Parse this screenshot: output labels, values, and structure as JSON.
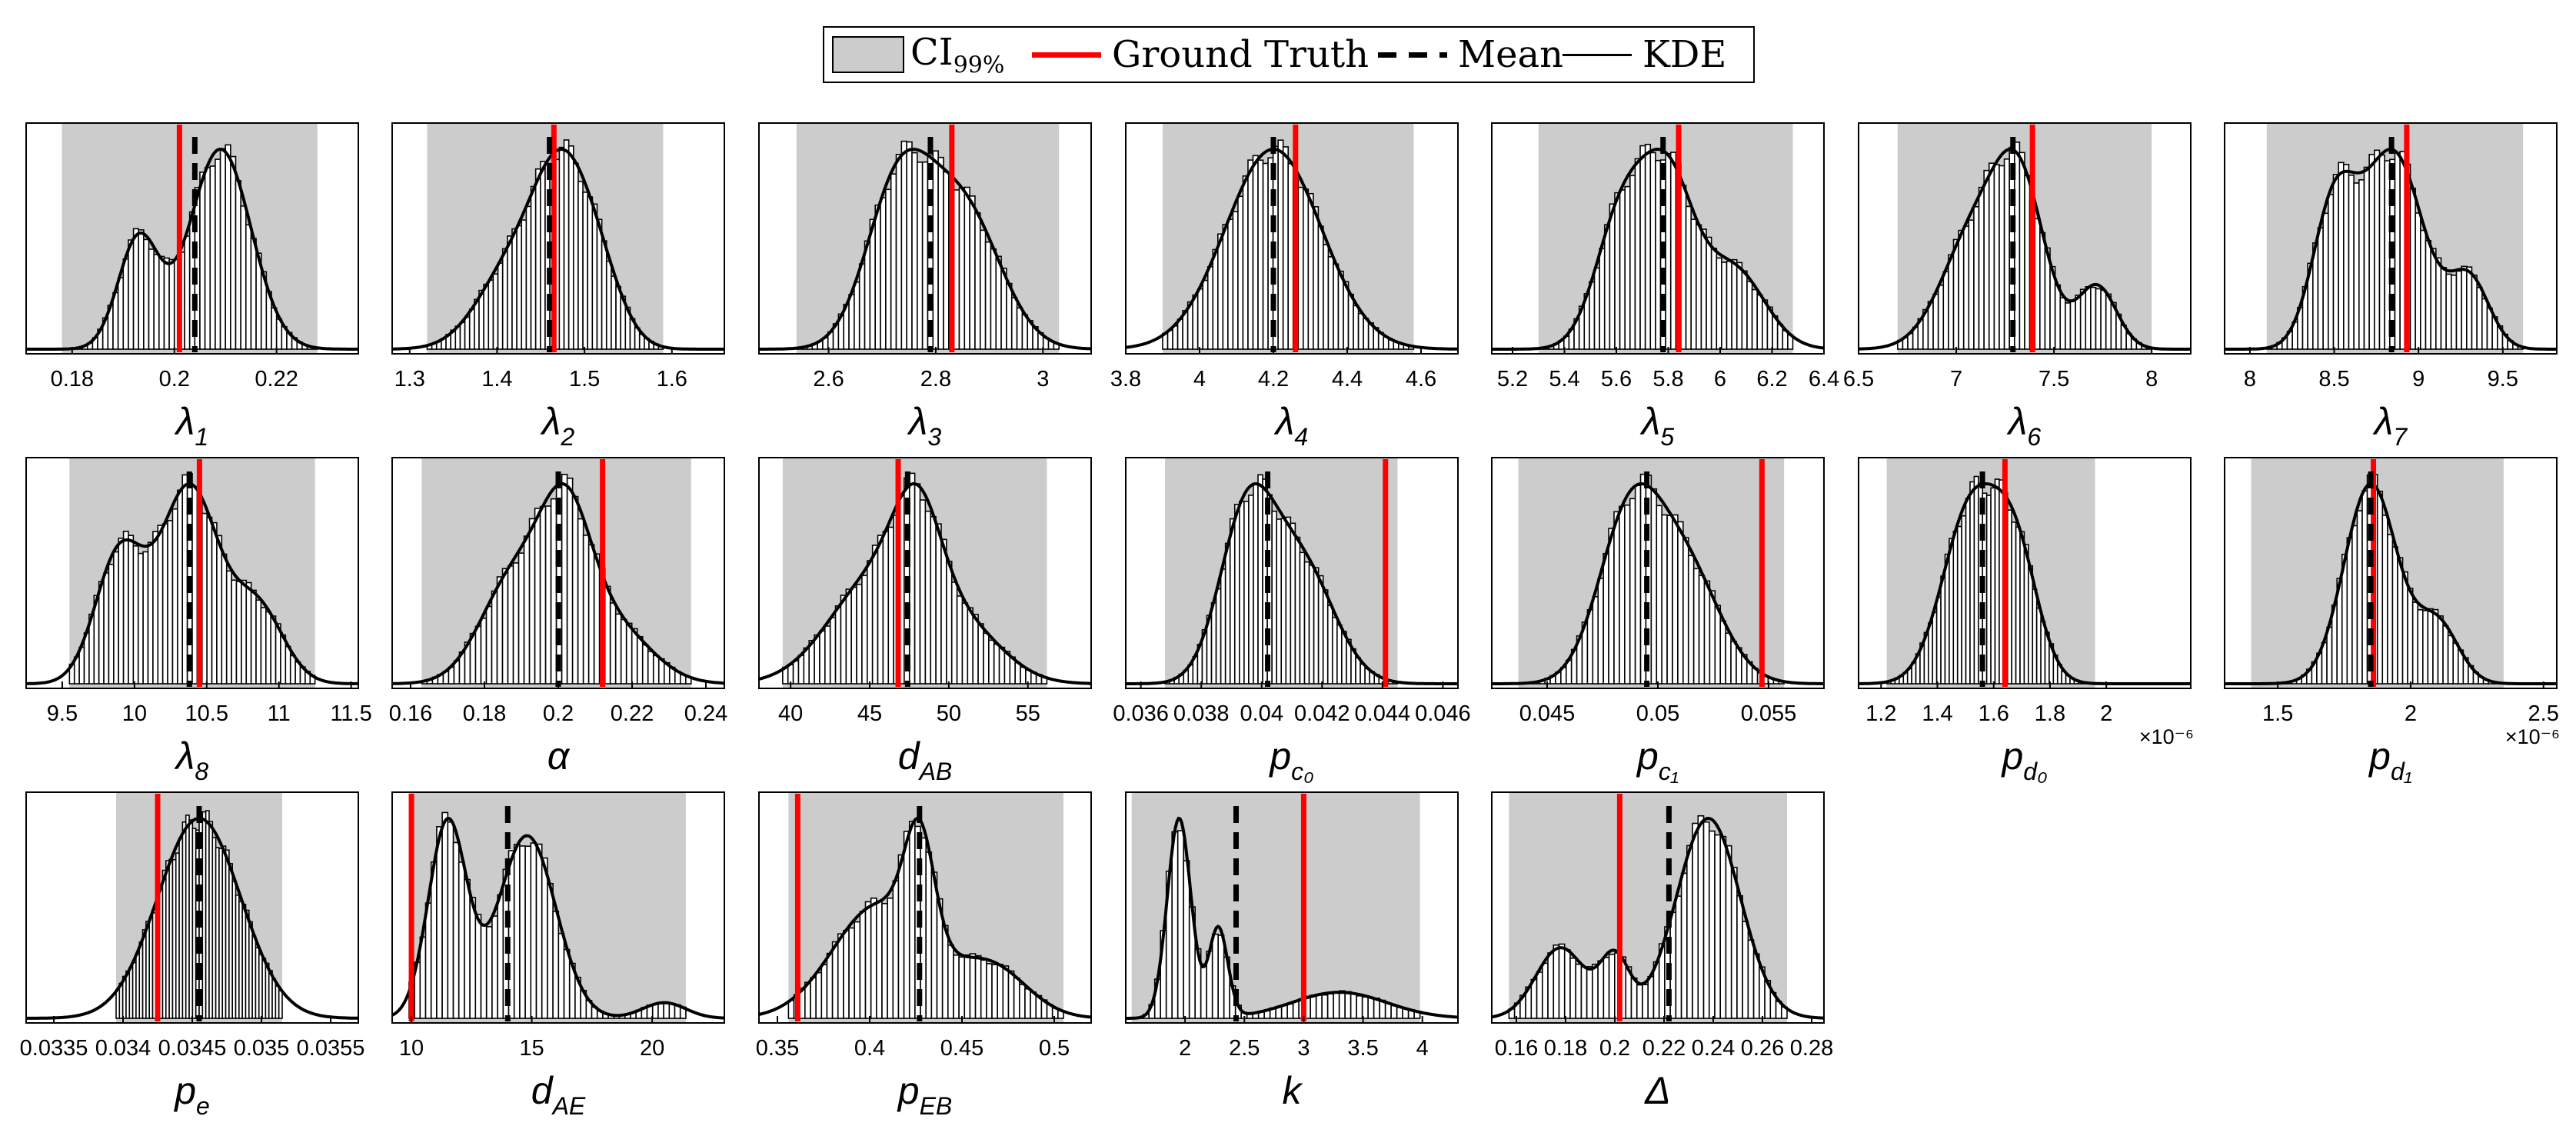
{
  "legend": {
    "ci_label": "CI",
    "ci_sub": "99%",
    "truth_label": "Ground Truth",
    "mean_label": "Mean",
    "kde_label": "KDE"
  },
  "colors": {
    "ci_fill": "#cccccc",
    "truth": "#ff0000",
    "mean": "#000000",
    "kde": "#000000",
    "bars": "#ffffff"
  },
  "chart_data": [
    {
      "id": "lambda1",
      "type": "bar",
      "xlabel": "λ",
      "xsub": "1",
      "xlim": [
        0.171,
        0.236
      ],
      "ticks": [
        0.18,
        0.2,
        0.22
      ],
      "tick_labels": [
        "0.18",
        "0.2",
        "0.22"
      ],
      "ci": [
        0.178,
        0.228
      ],
      "truth": 0.201,
      "mean": 0.204,
      "modes": [
        [
          0.193,
          0.004,
          0.55
        ],
        [
          0.209,
          0.006,
          1.0
        ]
      ]
    },
    {
      "id": "lambda2",
      "type": "bar",
      "xlabel": "λ",
      "xsub": "2",
      "xlim": [
        1.28,
        1.66
      ],
      "ticks": [
        1.3,
        1.4,
        1.5,
        1.6
      ],
      "tick_labels": [
        "1.3",
        "1.4",
        "1.5",
        "1.6"
      ],
      "ci": [
        1.32,
        1.59
      ],
      "truth": 1.465,
      "mean": 1.46,
      "modes": [
        [
          1.42,
          0.04,
          0.6
        ],
        [
          1.47,
          0.03,
          0.9
        ],
        [
          1.51,
          0.03,
          0.6
        ]
      ]
    },
    {
      "id": "lambda3",
      "type": "bar",
      "xlabel": "λ",
      "xsub": "3",
      "xlim": [
        2.47,
        3.09
      ],
      "ticks": [
        2.6,
        2.8,
        3.0
      ],
      "tick_labels": [
        "2.6",
        "2.8",
        "3"
      ],
      "ci": [
        2.54,
        3.03
      ],
      "truth": 2.83,
      "mean": 2.79,
      "modes": [
        [
          2.73,
          0.06,
          0.85
        ],
        [
          2.85,
          0.07,
          0.75
        ]
      ]
    },
    {
      "id": "lambda4",
      "type": "bar",
      "xlabel": "λ",
      "xsub": "4",
      "xlim": [
        3.8,
        4.7
      ],
      "ticks": [
        3.8,
        4.0,
        4.2,
        4.4,
        4.6
      ],
      "tick_labels": [
        "3.8",
        "4",
        "4.2",
        "4.4",
        "4.6"
      ],
      "ci": [
        3.9,
        4.58
      ],
      "truth": 4.26,
      "mean": 4.2,
      "modes": [
        [
          4.2,
          0.13,
          1.0
        ]
      ]
    },
    {
      "id": "lambda5",
      "type": "bar",
      "xlabel": "λ",
      "xsub": "5",
      "xlim": [
        5.12,
        6.4
      ],
      "ticks": [
        5.2,
        5.4,
        5.6,
        5.8,
        6.0,
        6.2,
        6.4
      ],
      "tick_labels": [
        "5.2",
        "5.4",
        "5.6",
        "5.8",
        "6",
        "6.2",
        "6.4"
      ],
      "ci": [
        5.3,
        6.28
      ],
      "truth": 5.84,
      "mean": 5.78,
      "modes": [
        [
          5.62,
          0.1,
          0.65
        ],
        [
          5.8,
          0.1,
          0.8
        ],
        [
          6.05,
          0.12,
          0.4
        ]
      ]
    },
    {
      "id": "lambda6",
      "type": "bar",
      "xlabel": "λ",
      "xsub": "6",
      "xlim": [
        6.5,
        8.2
      ],
      "ticks": [
        6.5,
        7.0,
        7.5,
        8.0
      ],
      "tick_labels": [
        "6.5",
        "7",
        "7.5",
        "8"
      ],
      "ci": [
        6.7,
        8.0
      ],
      "truth": 7.39,
      "mean": 7.29,
      "modes": [
        [
          7.1,
          0.17,
          0.65
        ],
        [
          7.33,
          0.13,
          0.8
        ],
        [
          7.72,
          0.1,
          0.35
        ]
      ]
    },
    {
      "id": "lambda7",
      "type": "bar",
      "xlabel": "λ",
      "xsub": "7",
      "xlim": [
        7.85,
        9.82
      ],
      "ticks": [
        8.0,
        8.5,
        9.0,
        9.5
      ],
      "tick_labels": [
        "8",
        "8.5",
        "9",
        "9.5"
      ],
      "ci": [
        8.1,
        9.62
      ],
      "truth": 8.93,
      "mean": 8.84,
      "modes": [
        [
          8.5,
          0.13,
          0.6
        ],
        [
          8.85,
          0.18,
          0.85
        ],
        [
          9.3,
          0.12,
          0.3
        ]
      ]
    },
    {
      "id": "lambda8",
      "type": "bar",
      "xlabel": "λ",
      "xsub": "8",
      "xlim": [
        9.25,
        11.55
      ],
      "ticks": [
        9.5,
        10.0,
        10.5,
        11.0,
        11.5
      ],
      "tick_labels": [
        "9.5",
        "10",
        "10.5",
        "11",
        "11.5"
      ],
      "ci": [
        9.55,
        11.25
      ],
      "truth": 10.45,
      "mean": 10.38,
      "modes": [
        [
          9.9,
          0.17,
          0.6
        ],
        [
          10.38,
          0.2,
          0.9
        ],
        [
          10.85,
          0.18,
          0.35
        ]
      ]
    },
    {
      "id": "alpha",
      "type": "bar",
      "xlabel": "α",
      "xsub": "",
      "xlim": [
        0.155,
        0.245
      ],
      "ticks": [
        0.16,
        0.18,
        0.2,
        0.22,
        0.24
      ],
      "tick_labels": [
        "0.16",
        "0.18",
        "0.2",
        "0.22",
        "0.24"
      ],
      "ci": [
        0.163,
        0.236
      ],
      "truth": 0.212,
      "mean": 0.2,
      "modes": [
        [
          0.188,
          0.009,
          0.65
        ],
        [
          0.202,
          0.007,
          0.9
        ],
        [
          0.215,
          0.01,
          0.35
        ]
      ]
    },
    {
      "id": "dAB",
      "type": "bar",
      "xlabel": "d",
      "xsub": "AB",
      "xlim": [
        38,
        59
      ],
      "ticks": [
        40,
        45,
        50,
        55
      ],
      "tick_labels": [
        "40",
        "45",
        "50",
        "55"
      ],
      "ci": [
        39.5,
        56.2
      ],
      "truth": 46.8,
      "mean": 47.4,
      "modes": [
        [
          45.5,
          3.0,
          0.75
        ],
        [
          48.0,
          1.5,
          0.7
        ],
        [
          51.0,
          2.5,
          0.35
        ]
      ]
    },
    {
      "id": "pc0",
      "type": "bar",
      "xlabel": "p",
      "xsub": "c₀",
      "xlim": [
        0.0355,
        0.0465
      ],
      "ticks": [
        0.036,
        0.038,
        0.04,
        0.042,
        0.044,
        0.046
      ],
      "tick_labels": [
        "0.036",
        "0.038",
        "0.04",
        "0.042",
        "0.044",
        "0.046"
      ],
      "ci": [
        0.0368,
        0.0445
      ],
      "truth": 0.0441,
      "mean": 0.0402,
      "modes": [
        [
          0.0395,
          0.0009,
          0.9
        ],
        [
          0.0413,
          0.0011,
          0.65
        ]
      ]
    },
    {
      "id": "pc1",
      "type": "bar",
      "xlabel": "p",
      "xsub": "c₁",
      "xlim": [
        0.0425,
        0.0575
      ],
      "ticks": [
        0.045,
        0.05,
        0.055
      ],
      "tick_labels": [
        "0.045",
        "0.05",
        "0.055"
      ],
      "ci": [
        0.0437,
        0.0557
      ],
      "truth": 0.0547,
      "mean": 0.0495,
      "modes": [
        [
          0.0487,
          0.0014,
          0.9
        ],
        [
          0.0512,
          0.0016,
          0.65
        ]
      ]
    },
    {
      "id": "pd0",
      "type": "bar",
      "xlabel": "p",
      "xsub": "d₀",
      "xlim": [
        1.12,
        2.3
      ],
      "ticks": [
        1.2,
        1.4,
        1.6,
        1.8,
        2.0
      ],
      "tick_labels": [
        "1.2",
        "1.4",
        "1.6",
        "1.8",
        "2"
      ],
      "ci": [
        1.22,
        1.96
      ],
      "truth": 1.64,
      "mean": 1.56,
      "modes": [
        [
          1.52,
          0.1,
          0.9
        ],
        [
          1.68,
          0.08,
          0.6
        ]
      ],
      "exponent": "×10⁻⁶"
    },
    {
      "id": "pd1",
      "type": "bar",
      "xlabel": "p",
      "xsub": "d₁",
      "xlim": [
        1.3,
        2.55
      ],
      "ticks": [
        1.5,
        2.0,
        2.5
      ],
      "tick_labels": [
        "1.5",
        "2",
        "2.5"
      ],
      "ci": [
        1.4,
        2.35
      ],
      "truth": 1.86,
      "mean": 1.85,
      "modes": [
        [
          1.85,
          0.1,
          1.0
        ],
        [
          2.1,
          0.08,
          0.3
        ]
      ],
      "exponent": "×10⁻⁶"
    },
    {
      "id": "pe",
      "type": "bar",
      "xlabel": "p",
      "xsub": "e",
      "xlim": [
        0.0333,
        0.0357
      ],
      "ticks": [
        0.0335,
        0.034,
        0.0345,
        0.035,
        0.0355
      ],
      "tick_labels": [
        "0.0335",
        "0.034",
        "0.0345",
        "0.035",
        "0.0355"
      ],
      "ci": [
        0.03395,
        0.03515
      ],
      "truth": 0.03425,
      "mean": 0.03455,
      "modes": [
        [
          0.03455,
          0.0003,
          1.0
        ]
      ]
    },
    {
      "id": "dAE",
      "type": "bar",
      "xlabel": "d",
      "xsub": "AE",
      "xlim": [
        9.2,
        23
      ],
      "ticks": [
        10,
        15,
        20
      ],
      "tick_labels": [
        "10",
        "15",
        "20"
      ],
      "ci": [
        9.9,
        21.4
      ],
      "truth": 10.0,
      "mean": 14.0,
      "modes": [
        [
          11.5,
          0.8,
          0.75
        ],
        [
          14.8,
          1.2,
          0.7
        ],
        [
          20.5,
          0.9,
          0.06
        ]
      ]
    },
    {
      "id": "pEB",
      "type": "bar",
      "xlabel": "p",
      "xsub": "EB",
      "xlim": [
        0.34,
        0.52
      ],
      "ticks": [
        0.35,
        0.4,
        0.45,
        0.5
      ],
      "tick_labels": [
        "0.35",
        "0.4",
        "0.45",
        "0.5"
      ],
      "ci": [
        0.356,
        0.505
      ],
      "truth": 0.361,
      "mean": 0.427,
      "modes": [
        [
          0.405,
          0.025,
          0.55
        ],
        [
          0.427,
          0.008,
          0.55
        ],
        [
          0.465,
          0.02,
          0.25
        ]
      ]
    },
    {
      "id": "k",
      "type": "bar",
      "xlabel": "k",
      "xsub": "",
      "xlim": [
        1.5,
        4.3
      ],
      "ticks": [
        2.0,
        2.5,
        3.0,
        3.5,
        4.0
      ],
      "tick_labels": [
        "2",
        "2.5",
        "3",
        "3.5",
        "4"
      ],
      "ci": [
        1.55,
        3.98
      ],
      "truth": 3.0,
      "mean": 2.43,
      "modes": [
        [
          1.95,
          0.1,
          1.0
        ],
        [
          2.28,
          0.08,
          0.45
        ],
        [
          3.3,
          0.4,
          0.13
        ]
      ]
    },
    {
      "id": "Delta",
      "type": "bar",
      "xlabel": "Δ",
      "xsub": "",
      "xlim": [
        0.15,
        0.285
      ],
      "ticks": [
        0.16,
        0.18,
        0.2,
        0.22,
        0.24,
        0.26,
        0.28
      ],
      "tick_labels": [
        "0.16",
        "0.18",
        "0.2",
        "0.22",
        "0.24",
        "0.26",
        "0.28"
      ],
      "ci": [
        0.157,
        0.27
      ],
      "truth": 0.202,
      "mean": 0.222,
      "modes": [
        [
          0.178,
          0.01,
          0.3
        ],
        [
          0.2,
          0.006,
          0.25
        ],
        [
          0.238,
          0.013,
          0.85
        ]
      ]
    }
  ]
}
